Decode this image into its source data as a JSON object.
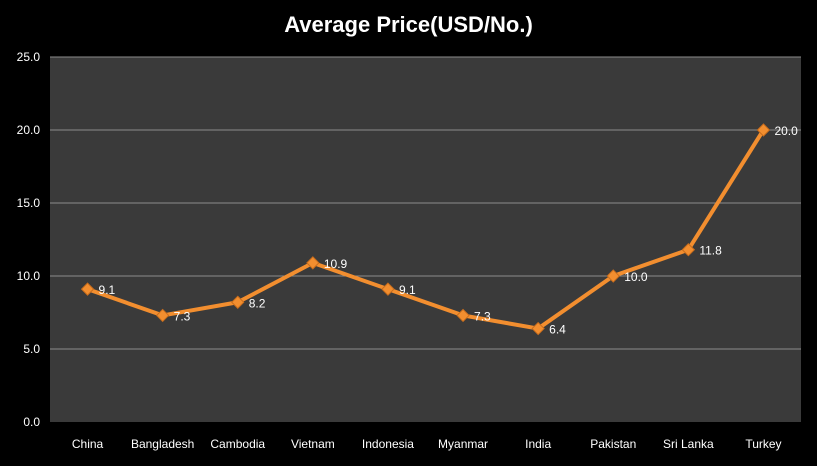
{
  "chart_data": {
    "type": "line",
    "title": "Average Price(USD/No.)",
    "categories": [
      "China",
      "Bangladesh",
      "Cambodia",
      "Vietnam",
      "Indonesia",
      "Myanmar",
      "India",
      "Pakistan",
      "Sri Lanka",
      "Turkey"
    ],
    "series": [
      {
        "values": [
          9.1,
          7.3,
          8.2,
          10.9,
          9.1,
          7.3,
          6.4,
          10.0,
          11.8,
          20.0
        ],
        "data_labels": [
          "9.1",
          "7.3",
          "8.2",
          "10.9",
          "9.1",
          "7.3",
          "6.4",
          "10.0",
          "11.8",
          "20.0"
        ],
        "color": "#f28e2f",
        "marker": "diamond"
      }
    ],
    "y_ticks": [
      "0.0",
      "5.0",
      "10.0",
      "15.0",
      "20.0",
      "25.0"
    ],
    "ylim": [
      0,
      25
    ],
    "xlabel": "",
    "ylabel": "",
    "grid": true,
    "legend": "none",
    "plot_background": "#3a3a3a",
    "page_background": "#000000",
    "grid_color": "#8c8c8c"
  }
}
